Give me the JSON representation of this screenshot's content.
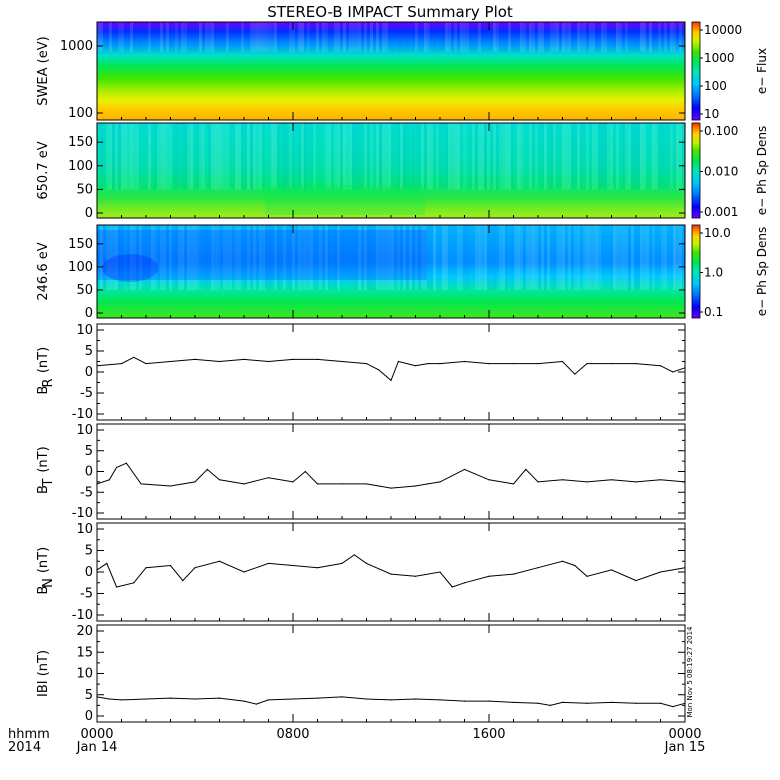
{
  "title": "STEREO-B IMPACT Summary Plot",
  "stamp": "Mon Nov 5 08:19:27 2014",
  "x_axis": {
    "row1": [
      "0000",
      "0800",
      "1600",
      "0000"
    ],
    "row2": [
      "Jan 14",
      "Jan 15"
    ],
    "left_row1": "hhmm",
    "left_row2": "2014"
  },
  "colorbar_colors": [
    "#6a00ff",
    "#0000ff",
    "#0077ff",
    "#00c8ff",
    "#00e6b4",
    "#00e650",
    "#3fe600",
    "#c8f000",
    "#ffd200",
    "#ff8c00",
    "#ff2a00"
  ],
  "chart_data": [
    {
      "type": "heatmap",
      "ylabel": "SWEA (eV)",
      "y_ticks": [
        "1000",
        "100"
      ],
      "colorbar": {
        "label": "e− Flux",
        "ticks": [
          "10000",
          "1000",
          "100",
          "10"
        ]
      }
    },
    {
      "type": "heatmap",
      "ylabel": "650.7 eV",
      "y_ticks": [
        "150",
        "100",
        "50",
        "0"
      ],
      "ylim": [
        0,
        180
      ],
      "colorbar": {
        "label": "e− Ph Sp Dens",
        "ticks": [
          "0.100",
          "0.010",
          "0.001"
        ]
      }
    },
    {
      "type": "heatmap",
      "ylabel": "246.6 eV",
      "y_ticks": [
        "150",
        "100",
        "50",
        "0"
      ],
      "ylim": [
        0,
        180
      ],
      "colorbar": {
        "label": "e− Ph Sp Dens",
        "ticks": [
          "10.0",
          "1.0",
          "0.1"
        ]
      }
    },
    {
      "type": "line",
      "ylabel_main": "B",
      "ylabel_sub": "R",
      "ylabel_unit": "(nT)",
      "y_ticks": [
        "10",
        "5",
        "0",
        "-5",
        "-10"
      ],
      "ylim": [
        -10,
        10
      ],
      "x": [
        0,
        1,
        1.5,
        2,
        3,
        4,
        5,
        6,
        7,
        8,
        9,
        10,
        11,
        11.5,
        12,
        12.3,
        13,
        13.5,
        14,
        15,
        16,
        17,
        18,
        19,
        19.5,
        20,
        21,
        22,
        23,
        23.5,
        24
      ],
      "values": [
        1.5,
        2.0,
        3.5,
        2.0,
        2.5,
        3.0,
        2.5,
        3.0,
        2.5,
        3.0,
        3.0,
        2.5,
        2.0,
        0.5,
        -2.0,
        2.5,
        1.5,
        2.0,
        2.0,
        2.5,
        2.0,
        2.0,
        2.0,
        2.5,
        -0.5,
        2.0,
        2.0,
        2.0,
        1.5,
        0.0,
        1.0
      ]
    },
    {
      "type": "line",
      "ylabel_main": "B",
      "ylabel_sub": "T",
      "ylabel_unit": "(nT)",
      "y_ticks": [
        "10",
        "5",
        "0",
        "-5",
        "-10"
      ],
      "ylim": [
        -10,
        10
      ],
      "x": [
        0,
        0.5,
        0.8,
        1.2,
        1.8,
        3,
        4,
        4.5,
        5,
        6,
        7,
        8,
        8.5,
        9,
        10,
        11,
        12,
        13,
        13.5,
        14,
        15,
        16,
        17,
        17.5,
        18,
        19,
        20,
        21,
        22,
        23,
        24
      ],
      "values": [
        -3.0,
        -2.0,
        1.0,
        2.0,
        -3.0,
        -3.5,
        -2.5,
        0.5,
        -2.0,
        -3.0,
        -1.5,
        -2.5,
        0.0,
        -3.0,
        -3.0,
        -3.0,
        -4.0,
        -3.5,
        -3.0,
        -2.5,
        0.5,
        -2.0,
        -3.0,
        0.5,
        -2.5,
        -2.0,
        -2.5,
        -2.0,
        -2.5,
        -2.0,
        -2.5
      ]
    },
    {
      "type": "line",
      "ylabel_main": "B",
      "ylabel_sub": "N",
      "ylabel_unit": "(nT)",
      "y_ticks": [
        "10",
        "5",
        "0",
        "-5",
        "-10"
      ],
      "ylim": [
        -10,
        10
      ],
      "x": [
        0,
        0.4,
        0.8,
        1.5,
        2,
        3,
        3.5,
        4,
        5,
        6,
        7,
        8,
        9,
        10,
        10.5,
        11,
        12,
        13,
        14,
        14.5,
        15,
        16,
        17,
        18,
        19,
        19.5,
        20,
        21,
        22,
        23,
        24
      ],
      "values": [
        0.5,
        2.0,
        -3.5,
        -2.5,
        1.0,
        1.5,
        -2.0,
        1.0,
        2.5,
        0.0,
        2.0,
        1.5,
        1.0,
        2.0,
        4.0,
        2.0,
        -0.5,
        -1.0,
        0.0,
        -3.5,
        -2.5,
        -1.0,
        -0.5,
        1.0,
        2.5,
        1.5,
        -1.0,
        0.5,
        -2.0,
        0.0,
        1.0
      ]
    },
    {
      "type": "line",
      "ylabel": "IBI (nT)",
      "y_ticks": [
        "20",
        "15",
        "10",
        "5",
        "0"
      ],
      "ylim": [
        0,
        20
      ],
      "x": [
        0,
        0.5,
        1,
        2,
        3,
        4,
        5,
        6,
        6.5,
        7,
        8,
        9,
        10,
        11,
        12,
        13,
        14,
        15,
        16,
        17,
        18,
        18.5,
        19,
        20,
        21,
        22,
        23,
        23.5,
        24
      ],
      "values": [
        4.5,
        4.0,
        3.8,
        4.0,
        4.2,
        4.0,
        4.2,
        3.5,
        2.8,
        3.8,
        4.0,
        4.2,
        4.5,
        4.0,
        3.8,
        4.0,
        3.8,
        3.5,
        3.5,
        3.2,
        3.0,
        2.5,
        3.2,
        3.0,
        3.2,
        3.0,
        3.0,
        2.2,
        3.0
      ]
    }
  ]
}
